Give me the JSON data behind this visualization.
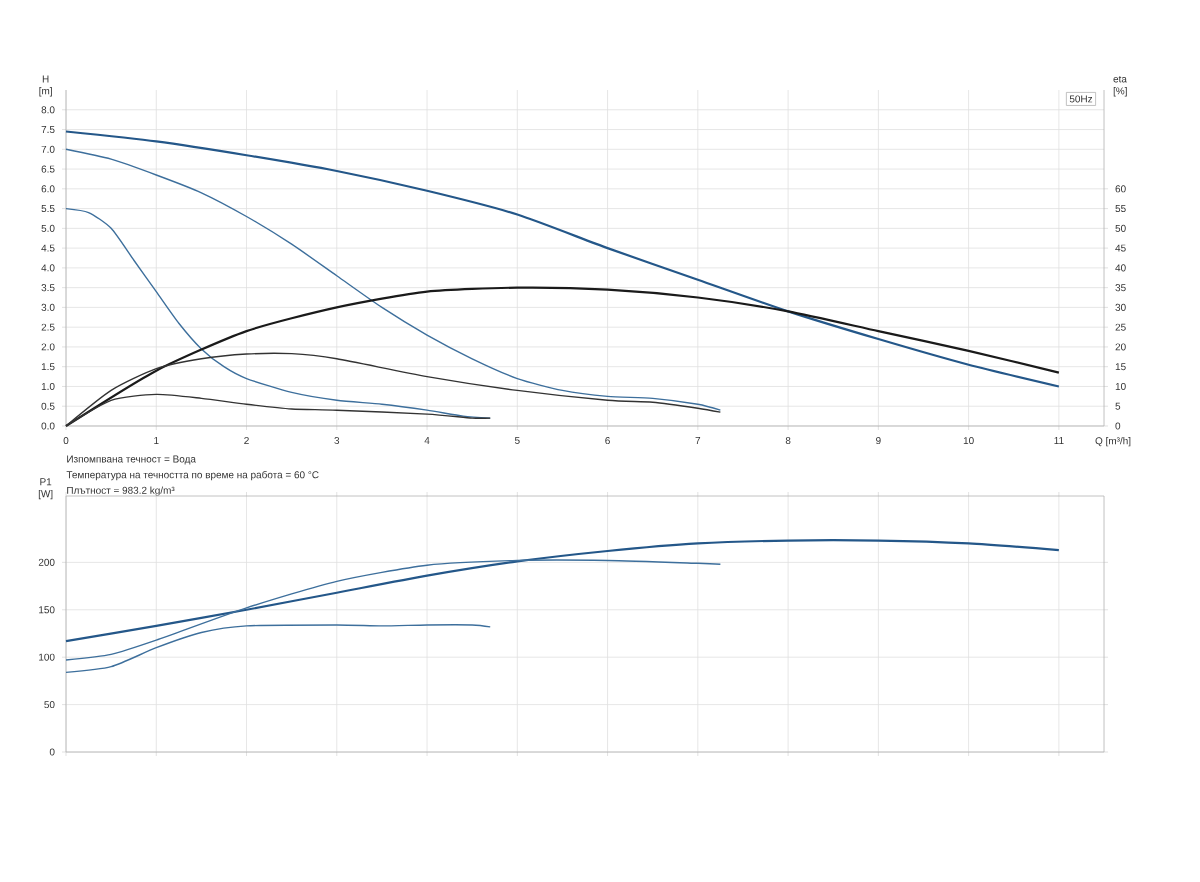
{
  "chart_data": [
    {
      "type": "line",
      "subtitle": "50Hz",
      "xlabel": "Q [m³/h]",
      "ylabel": "H [m]",
      "y2label": "eta [%]",
      "grid": true,
      "annotations": [
        "Изпомпвана течност = Вода",
        "Температура на течността по време на работа = 60 °C",
        "Плътност = 983.2 kg/m³"
      ],
      "xlim": [
        0,
        11.5
      ],
      "xticks": [
        0,
        1,
        2,
        3,
        4,
        5,
        6,
        7,
        8,
        9,
        10,
        11
      ],
      "ylim": [
        0,
        8.5
      ],
      "yticks": [
        {
          "value": 0,
          "label": "0.0"
        },
        {
          "value": 0.5,
          "label": "0.5"
        },
        {
          "value": 1,
          "label": "1.0"
        },
        {
          "value": 1.5,
          "label": "1.5"
        },
        {
          "value": 2,
          "label": "2.0"
        },
        {
          "value": 2.5,
          "label": "2.5"
        },
        {
          "value": 3,
          "label": "3.0"
        },
        {
          "value": 3.5,
          "label": "3.5"
        },
        {
          "value": 4,
          "label": "4.0"
        },
        {
          "value": 4.5,
          "label": "4.5"
        },
        {
          "value": 5,
          "label": "5.0"
        },
        {
          "value": 5.5,
          "label": "5.5"
        },
        {
          "value": 6,
          "label": "6.0"
        },
        {
          "value": 6.5,
          "label": "6.5"
        },
        {
          "value": 7,
          "label": "7.0"
        },
        {
          "value": 7.5,
          "label": "7.5"
        },
        {
          "value": 8,
          "label": "8.0"
        }
      ],
      "y2lim": [
        0,
        85
      ],
      "y2ticks": [
        0,
        5,
        10,
        15,
        20,
        25,
        30,
        35,
        40,
        45,
        50,
        55,
        60
      ],
      "series": [
        {
          "color": "#245789",
          "x": [
            0,
            1,
            2,
            3,
            4,
            5,
            6,
            7,
            8,
            9,
            10,
            11
          ],
          "values": [
            7.45,
            7.2,
            6.85,
            6.45,
            5.95,
            5.35,
            4.5,
            3.7,
            2.9,
            2.2,
            1.55,
            1.0
          ]
        },
        {
          "color": "#3d6f9c",
          "x": [
            0,
            0.5,
            1,
            1.5,
            2,
            2.5,
            3,
            3.5,
            4,
            4.5,
            5,
            5.5,
            6,
            6.5,
            7,
            7.25
          ],
          "values": [
            7.0,
            6.75,
            6.35,
            5.9,
            5.3,
            4.6,
            3.8,
            3.0,
            2.3,
            1.7,
            1.2,
            0.9,
            0.75,
            0.7,
            0.55,
            0.4
          ]
        },
        {
          "color": "#3d6f9c",
          "x": [
            0,
            0.25,
            0.5,
            0.75,
            1,
            1.25,
            1.5,
            1.75,
            2,
            2.5,
            3,
            3.5,
            4,
            4.4,
            4.7
          ],
          "values": [
            5.5,
            5.4,
            5.0,
            4.2,
            3.4,
            2.6,
            1.95,
            1.5,
            1.2,
            0.85,
            0.65,
            0.55,
            0.4,
            0.25,
            0.2
          ]
        },
        {
          "color": "#1a1a1a",
          "axis": "y2",
          "x": [
            0,
            1,
            2,
            3,
            4,
            5,
            6,
            7,
            8,
            9,
            10,
            11
          ],
          "values": [
            0,
            14,
            24,
            30,
            34,
            35,
            34.5,
            32.5,
            29,
            24,
            19,
            13.5
          ]
        },
        {
          "color": "#333333",
          "axis": "y2",
          "x": [
            0,
            0.5,
            1,
            1.5,
            2,
            2.5,
            3,
            4,
            5,
            6,
            6.5,
            7,
            7.25
          ],
          "values": [
            0,
            9,
            14.5,
            17,
            18.2,
            18.3,
            17,
            12.5,
            9,
            6.5,
            6,
            4.5,
            3.5
          ]
        },
        {
          "color": "#333333",
          "axis": "y2",
          "x": [
            0,
            0.5,
            1,
            1.5,
            2,
            2.5,
            3,
            4,
            4.5,
            4.7
          ],
          "values": [
            0,
            6.5,
            8,
            7,
            5.5,
            4.3,
            4,
            3,
            2,
            2
          ]
        }
      ]
    },
    {
      "type": "line",
      "ylabel": "P1 [W]",
      "grid": true,
      "tick_labels": "y",
      "xlim": [
        0,
        11.5
      ],
      "xticks": [
        0,
        1,
        2,
        3,
        4,
        5,
        6,
        7,
        8,
        9,
        10,
        11
      ],
      "ylim": [
        0,
        270
      ],
      "yticks": [
        0,
        50,
        100,
        150,
        200
      ],
      "series": [
        {
          "color": "#245789",
          "x": [
            0,
            1,
            2,
            3,
            4,
            5,
            6,
            7,
            8,
            9,
            10,
            11
          ],
          "values": [
            117,
            133,
            150,
            168,
            186,
            201,
            212,
            220,
            223,
            223,
            220,
            213
          ]
        },
        {
          "color": "#3d6f9c",
          "x": [
            0,
            0.5,
            1,
            2,
            3,
            4,
            5,
            6,
            7,
            7.25
          ],
          "values": [
            97,
            103,
            118,
            152,
            180,
            197,
            202,
            202,
            199,
            198
          ]
        },
        {
          "color": "#3d6f9c",
          "x": [
            0,
            0.5,
            1,
            1.5,
            2,
            3,
            3.5,
            4,
            4.5,
            4.7
          ],
          "values": [
            84,
            90,
            110,
            126,
            133,
            134,
            133,
            134,
            134,
            132
          ]
        }
      ]
    }
  ]
}
